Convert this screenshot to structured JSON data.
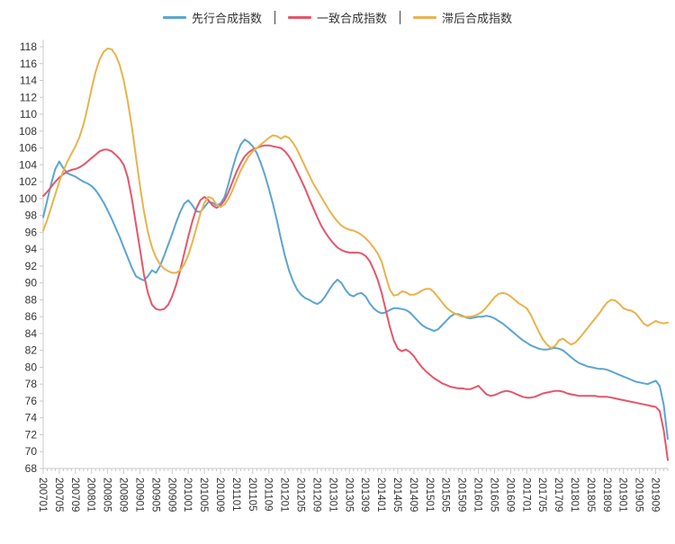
{
  "legend": {
    "items": [
      {
        "label": "先行合成指数",
        "color": "#5aa5d1"
      },
      {
        "label": "一致合成指数",
        "color": "#e4566a"
      },
      {
        "label": "滞后合成指数",
        "color": "#e8b34d"
      }
    ]
  },
  "axis": {
    "color": "#c9c9c9",
    "label_color": "#333333"
  },
  "chart_data": {
    "type": "line",
    "title": "",
    "xlabel": "",
    "ylabel": "",
    "ylim": [
      68,
      118
    ],
    "ytick_step": 2,
    "xtick_every": 4,
    "grid": false,
    "legend_position": "top",
    "x": [
      "200701",
      "200702",
      "200703",
      "200704",
      "200705",
      "200706",
      "200707",
      "200708",
      "200709",
      "200710",
      "200711",
      "200712",
      "200801",
      "200802",
      "200803",
      "200804",
      "200805",
      "200806",
      "200807",
      "200808",
      "200809",
      "200810",
      "200811",
      "200812",
      "200901",
      "200902",
      "200903",
      "200904",
      "200905",
      "200906",
      "200907",
      "200908",
      "200909",
      "200910",
      "200911",
      "200912",
      "201001",
      "201002",
      "201003",
      "201004",
      "201005",
      "201006",
      "201007",
      "201008",
      "201009",
      "201010",
      "201011",
      "201012",
      "201101",
      "201102",
      "201103",
      "201104",
      "201105",
      "201106",
      "201107",
      "201108",
      "201109",
      "201110",
      "201111",
      "201112",
      "201201",
      "201202",
      "201203",
      "201204",
      "201205",
      "201206",
      "201207",
      "201208",
      "201209",
      "201210",
      "201211",
      "201212",
      "201301",
      "201302",
      "201303",
      "201304",
      "201305",
      "201306",
      "201307",
      "201308",
      "201309",
      "201310",
      "201311",
      "201312",
      "201401",
      "201402",
      "201403",
      "201404",
      "201405",
      "201406",
      "201407",
      "201408",
      "201409",
      "201410",
      "201411",
      "201412",
      "201501",
      "201502",
      "201503",
      "201504",
      "201505",
      "201506",
      "201507",
      "201508",
      "201509",
      "201510",
      "201511",
      "201512",
      "201601",
      "201602",
      "201603",
      "201604",
      "201605",
      "201606",
      "201607",
      "201608",
      "201609",
      "201610",
      "201611",
      "201612",
      "201701",
      "201702",
      "201703",
      "201704",
      "201705",
      "201706",
      "201707",
      "201708",
      "201709",
      "201710",
      "201711",
      "201712",
      "201801",
      "201802",
      "201803",
      "201804",
      "201805",
      "201806",
      "201807",
      "201808",
      "201809",
      "201810",
      "201811",
      "201812",
      "201901",
      "201902",
      "201903",
      "201904",
      "201905",
      "201906",
      "201907",
      "201908",
      "201909",
      "201910",
      "201911",
      "201912"
    ],
    "series": [
      {
        "name": "先行合成指数",
        "color": "#5aa5d1",
        "values": [
          97.8,
          99.8,
          101.8,
          103.5,
          104.4,
          103.6,
          103.0,
          102.8,
          102.6,
          102.3,
          102.0,
          101.8,
          101.5,
          101.0,
          100.3,
          99.5,
          98.6,
          97.6,
          96.5,
          95.4,
          94.2,
          93.0,
          91.8,
          90.8,
          90.5,
          90.3,
          90.8,
          91.5,
          91.2,
          92.0,
          93.2,
          94.5,
          95.8,
          97.2,
          98.4,
          99.4,
          99.8,
          99.2,
          98.5,
          98.4,
          99.0,
          99.6,
          99.5,
          99.2,
          99.4,
          100.2,
          101.8,
          103.6,
          105.2,
          106.4,
          107.0,
          106.7,
          106.2,
          105.4,
          104.2,
          102.8,
          101.2,
          99.4,
          97.4,
          95.2,
          93.2,
          91.5,
          90.2,
          89.2,
          88.6,
          88.2,
          88.0,
          87.7,
          87.5,
          87.8,
          88.4,
          89.2,
          89.9,
          90.4,
          90.0,
          89.2,
          88.6,
          88.4,
          88.7,
          88.8,
          88.4,
          87.6,
          87.0,
          86.6,
          86.4,
          86.5,
          86.8,
          87.0,
          87.0,
          86.9,
          86.8,
          86.5,
          86.0,
          85.5,
          85.0,
          84.7,
          84.5,
          84.3,
          84.5,
          85.0,
          85.5,
          86.0,
          86.3,
          86.3,
          86.1,
          85.9,
          85.8,
          85.9,
          86.0,
          86.0,
          86.1,
          86.0,
          85.8,
          85.5,
          85.2,
          84.8,
          84.4,
          84.0,
          83.6,
          83.2,
          82.9,
          82.6,
          82.4,
          82.2,
          82.1,
          82.1,
          82.2,
          82.3,
          82.2,
          82.0,
          81.6,
          81.2,
          80.8,
          80.5,
          80.3,
          80.1,
          80.0,
          79.9,
          79.8,
          79.8,
          79.7,
          79.5,
          79.3,
          79.1,
          78.9,
          78.7,
          78.5,
          78.3,
          78.2,
          78.1,
          78.0,
          78.2,
          78.4,
          77.8,
          75.5,
          71.5
        ]
      },
      {
        "name": "一致合成指数",
        "color": "#e4566a",
        "values": [
          100.3,
          100.8,
          101.4,
          102.0,
          102.5,
          102.9,
          103.2,
          103.4,
          103.5,
          103.7,
          104.0,
          104.4,
          104.8,
          105.2,
          105.6,
          105.8,
          105.8,
          105.6,
          105.2,
          104.7,
          104.0,
          102.5,
          100.0,
          97.0,
          94.0,
          91.0,
          88.8,
          87.4,
          86.9,
          86.8,
          86.9,
          87.4,
          88.4,
          89.8,
          91.5,
          93.5,
          95.5,
          97.3,
          98.8,
          99.8,
          100.2,
          99.8,
          99.2,
          98.9,
          99.2,
          99.8,
          100.8,
          102.0,
          103.2,
          104.2,
          105.0,
          105.5,
          105.8,
          106.0,
          106.2,
          106.3,
          106.3,
          106.2,
          106.1,
          106.0,
          105.6,
          105.0,
          104.2,
          103.2,
          102.2,
          101.2,
          100.0,
          98.9,
          97.8,
          96.8,
          96.0,
          95.3,
          94.7,
          94.2,
          93.9,
          93.7,
          93.6,
          93.6,
          93.6,
          93.5,
          93.2,
          92.6,
          91.6,
          90.4,
          88.8,
          86.8,
          84.8,
          83.2,
          82.2,
          81.9,
          82.1,
          81.8,
          81.3,
          80.6,
          80.0,
          79.5,
          79.1,
          78.7,
          78.4,
          78.1,
          77.9,
          77.7,
          77.6,
          77.5,
          77.5,
          77.4,
          77.4,
          77.6,
          77.8,
          77.3,
          76.8,
          76.6,
          76.7,
          76.9,
          77.1,
          77.2,
          77.1,
          76.9,
          76.7,
          76.5,
          76.4,
          76.4,
          76.5,
          76.7,
          76.9,
          77.0,
          77.1,
          77.2,
          77.2,
          77.1,
          76.9,
          76.8,
          76.7,
          76.6,
          76.6,
          76.6,
          76.6,
          76.6,
          76.5,
          76.5,
          76.5,
          76.4,
          76.3,
          76.2,
          76.1,
          76.0,
          75.9,
          75.8,
          75.7,
          75.6,
          75.5,
          75.4,
          75.3,
          74.8,
          72.5,
          69.0
        ]
      },
      {
        "name": "滞后合成指数",
        "color": "#e8b34d",
        "values": [
          96.2,
          97.5,
          99.0,
          100.5,
          102.0,
          103.3,
          104.4,
          105.3,
          106.2,
          107.3,
          108.8,
          110.8,
          113.0,
          115.0,
          116.5,
          117.4,
          117.8,
          117.7,
          117.0,
          115.8,
          114.0,
          111.5,
          108.5,
          105.0,
          101.5,
          98.5,
          96.0,
          94.2,
          93.0,
          92.2,
          91.7,
          91.4,
          91.2,
          91.2,
          91.5,
          92.2,
          93.3,
          94.8,
          96.5,
          98.2,
          99.5,
          100.2,
          100.0,
          99.3,
          99.0,
          99.3,
          100.0,
          101.0,
          102.2,
          103.3,
          104.2,
          105.0,
          105.6,
          106.0,
          106.4,
          106.8,
          107.2,
          107.5,
          107.4,
          107.1,
          107.4,
          107.2,
          106.6,
          105.8,
          104.8,
          103.8,
          102.8,
          101.8,
          101.0,
          100.2,
          99.4,
          98.6,
          97.9,
          97.3,
          96.8,
          96.5,
          96.3,
          96.2,
          96.0,
          95.7,
          95.3,
          94.8,
          94.2,
          93.5,
          92.5,
          90.8,
          89.2,
          88.5,
          88.6,
          89.0,
          88.9,
          88.6,
          88.6,
          88.8,
          89.1,
          89.3,
          89.3,
          88.9,
          88.3,
          87.7,
          87.1,
          86.7,
          86.4,
          86.2,
          86.0,
          86.0,
          86.0,
          86.1,
          86.3,
          86.6,
          87.1,
          87.7,
          88.3,
          88.7,
          88.8,
          88.7,
          88.4,
          88.0,
          87.6,
          87.3,
          87.0,
          86.2,
          85.2,
          84.2,
          83.3,
          82.7,
          82.3,
          82.5,
          83.2,
          83.4,
          83.0,
          82.7,
          82.9,
          83.4,
          84.0,
          84.6,
          85.2,
          85.8,
          86.4,
          87.1,
          87.7,
          88.0,
          87.9,
          87.5,
          87.0,
          86.8,
          86.7,
          86.4,
          85.8,
          85.2,
          84.9,
          85.2,
          85.5,
          85.3,
          85.2,
          85.3
        ]
      }
    ]
  }
}
